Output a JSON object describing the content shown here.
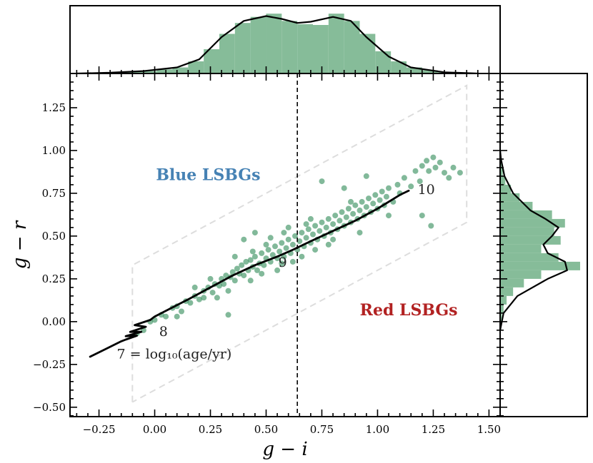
{
  "chart_data": {
    "type": "scatter",
    "xlabel": "g − i",
    "ylabel": "g − r",
    "xlim": [
      -0.38,
      1.55
    ],
    "ylim": [
      -0.555,
      1.45
    ],
    "x_ticks": [
      -0.25,
      0.0,
      0.25,
      0.5,
      0.75,
      1.0,
      1.25,
      1.5
    ],
    "x_tick_labels": [
      "−0.25",
      "0.00",
      "0.25",
      "0.50",
      "0.75",
      "1.00",
      "1.25",
      "1.50"
    ],
    "y_ticks": [
      -0.5,
      -0.25,
      0.0,
      0.25,
      0.5,
      0.75,
      1.0,
      1.25
    ],
    "y_tick_labels": [
      "−0.50",
      "−0.25",
      "0.00",
      "0.25",
      "0.50",
      "0.75",
      "1.00",
      "1.25"
    ],
    "divider_x": 0.64,
    "region_labels": [
      {
        "name": "blue",
        "text": "Blue LSBGs",
        "x": 0.24,
        "y": 0.86,
        "color": "#4682b4"
      },
      {
        "name": "red",
        "text": "Red LSBGs",
        "x": 1.14,
        "y": 0.07,
        "color": "#b22222"
      }
    ],
    "selection_box": [
      [
        -0.1,
        -0.47
      ],
      [
        -0.1,
        0.33
      ],
      [
        1.4,
        1.38
      ],
      [
        1.4,
        0.58
      ],
      [
        -0.1,
        -0.47
      ]
    ],
    "model_track": [
      [
        -0.29,
        -0.205
      ],
      [
        -0.22,
        -0.16
      ],
      [
        -0.15,
        -0.115
      ],
      [
        -0.13,
        -0.105
      ],
      [
        -0.08,
        -0.082
      ],
      [
        -0.13,
        -0.085
      ],
      [
        -0.06,
        -0.06
      ],
      [
        -0.11,
        -0.06
      ],
      [
        -0.04,
        -0.03
      ],
      [
        -0.09,
        -0.02
      ],
      [
        -0.02,
        0.01
      ],
      [
        0.0,
        0.03
      ],
      [
        0.06,
        0.07
      ],
      [
        0.15,
        0.13
      ],
      [
        0.25,
        0.2
      ],
      [
        0.35,
        0.27
      ],
      [
        0.45,
        0.33
      ],
      [
        0.55,
        0.38
      ],
      [
        0.62,
        0.42
      ],
      [
        0.7,
        0.47
      ],
      [
        0.8,
        0.53
      ],
      [
        0.9,
        0.59
      ],
      [
        1.0,
        0.66
      ],
      [
        1.1,
        0.74
      ],
      [
        1.14,
        0.765
      ]
    ],
    "track_labels": [
      {
        "text": "7 = log₁₀(age/yr)",
        "x": -0.17,
        "y": -0.19
      },
      {
        "text": "8",
        "x": 0.02,
        "y": -0.06
      },
      {
        "text": "9",
        "x": 0.555,
        "y": 0.345
      },
      {
        "text": "10",
        "x": 1.18,
        "y": 0.77
      }
    ],
    "points": [
      [
        -0.08,
        -0.07
      ],
      [
        -0.05,
        -0.05
      ],
      [
        -0.02,
        0.0
      ],
      [
        0.0,
        0.01
      ],
      [
        0.03,
        0.04
      ],
      [
        0.05,
        0.03
      ],
      [
        0.08,
        0.08
      ],
      [
        0.1,
        0.09
      ],
      [
        0.12,
        0.06
      ],
      [
        0.14,
        0.12
      ],
      [
        0.16,
        0.11
      ],
      [
        0.18,
        0.15
      ],
      [
        0.2,
        0.13
      ],
      [
        0.22,
        0.18
      ],
      [
        0.24,
        0.2
      ],
      [
        0.26,
        0.17
      ],
      [
        0.27,
        0.22
      ],
      [
        0.29,
        0.21
      ],
      [
        0.3,
        0.25
      ],
      [
        0.31,
        0.22
      ],
      [
        0.32,
        0.27
      ],
      [
        0.33,
        0.04
      ],
      [
        0.34,
        0.26
      ],
      [
        0.35,
        0.29
      ],
      [
        0.36,
        0.24
      ],
      [
        0.37,
        0.31
      ],
      [
        0.38,
        0.28
      ],
      [
        0.39,
        0.33
      ],
      [
        0.4,
        0.27
      ],
      [
        0.41,
        0.35
      ],
      [
        0.42,
        0.3
      ],
      [
        0.43,
        0.36
      ],
      [
        0.44,
        0.32
      ],
      [
        0.45,
        0.38
      ],
      [
        0.46,
        0.3
      ],
      [
        0.47,
        0.34
      ],
      [
        0.48,
        0.4
      ],
      [
        0.49,
        0.33
      ],
      [
        0.5,
        0.37
      ],
      [
        0.51,
        0.42
      ],
      [
        0.52,
        0.35
      ],
      [
        0.53,
        0.39
      ],
      [
        0.54,
        0.44
      ],
      [
        0.55,
        0.37
      ],
      [
        0.56,
        0.41
      ],
      [
        0.57,
        0.46
      ],
      [
        0.58,
        0.38
      ],
      [
        0.59,
        0.43
      ],
      [
        0.6,
        0.48
      ],
      [
        0.61,
        0.4
      ],
      [
        0.62,
        0.45
      ],
      [
        0.63,
        0.5
      ],
      [
        0.64,
        0.42
      ],
      [
        0.65,
        0.47
      ],
      [
        0.66,
        0.52
      ],
      [
        0.67,
        0.44
      ],
      [
        0.68,
        0.49
      ],
      [
        0.69,
        0.54
      ],
      [
        0.7,
        0.46
      ],
      [
        0.71,
        0.51
      ],
      [
        0.72,
        0.56
      ],
      [
        0.73,
        0.48
      ],
      [
        0.74,
        0.53
      ],
      [
        0.75,
        0.58
      ],
      [
        0.76,
        0.5
      ],
      [
        0.77,
        0.55
      ],
      [
        0.78,
        0.6
      ],
      [
        0.79,
        0.52
      ],
      [
        0.8,
        0.57
      ],
      [
        0.81,
        0.62
      ],
      [
        0.82,
        0.54
      ],
      [
        0.83,
        0.59
      ],
      [
        0.84,
        0.64
      ],
      [
        0.85,
        0.56
      ],
      [
        0.86,
        0.61
      ],
      [
        0.87,
        0.66
      ],
      [
        0.88,
        0.58
      ],
      [
        0.89,
        0.63
      ],
      [
        0.9,
        0.68
      ],
      [
        0.91,
        0.6
      ],
      [
        0.92,
        0.65
      ],
      [
        0.93,
        0.7
      ],
      [
        0.94,
        0.62
      ],
      [
        0.95,
        0.67
      ],
      [
        0.96,
        0.72
      ],
      [
        0.97,
        0.64
      ],
      [
        0.98,
        0.69
      ],
      [
        0.99,
        0.74
      ],
      [
        1.0,
        0.66
      ],
      [
        1.01,
        0.71
      ],
      [
        1.02,
        0.76
      ],
      [
        1.03,
        0.68
      ],
      [
        1.04,
        0.73
      ],
      [
        1.05,
        0.78
      ],
      [
        1.07,
        0.7
      ],
      [
        1.09,
        0.8
      ],
      [
        1.1,
        0.75
      ],
      [
        1.12,
        0.84
      ],
      [
        1.15,
        0.79
      ],
      [
        1.17,
        0.88
      ],
      [
        1.19,
        0.82
      ],
      [
        1.2,
        0.91
      ],
      [
        1.22,
        0.94
      ],
      [
        1.23,
        0.88
      ],
      [
        1.25,
        0.96
      ],
      [
        1.26,
        0.9
      ],
      [
        1.28,
        0.93
      ],
      [
        1.3,
        0.87
      ],
      [
        1.32,
        0.84
      ],
      [
        1.34,
        0.9
      ],
      [
        1.37,
        0.87
      ],
      [
        1.24,
        0.56
      ],
      [
        1.2,
        0.62
      ],
      [
        0.45,
        0.52
      ],
      [
        0.4,
        0.48
      ],
      [
        0.75,
        0.82
      ],
      [
        0.85,
        0.78
      ],
      [
        0.95,
        0.85
      ],
      [
        0.33,
        0.18
      ],
      [
        0.28,
        0.14
      ],
      [
        0.48,
        0.28
      ],
      [
        0.55,
        0.3
      ],
      [
        0.6,
        0.55
      ],
      [
        0.52,
        0.49
      ],
      [
        0.66,
        0.38
      ],
      [
        0.72,
        0.42
      ],
      [
        0.78,
        0.45
      ],
      [
        0.58,
        0.52
      ],
      [
        0.62,
        0.35
      ],
      [
        0.7,
        0.6
      ],
      [
        0.88,
        0.7
      ],
      [
        0.92,
        0.52
      ],
      [
        1.05,
        0.62
      ],
      [
        0.44,
        0.41
      ],
      [
        0.36,
        0.38
      ],
      [
        0.5,
        0.45
      ],
      [
        0.18,
        0.2
      ],
      [
        0.22,
        0.14
      ],
      [
        0.1,
        0.03
      ],
      [
        0.25,
        0.25
      ],
      [
        0.43,
        0.24
      ],
      [
        0.57,
        0.34
      ],
      [
        0.68,
        0.57
      ],
      [
        0.8,
        0.48
      ]
    ],
    "top_histogram": {
      "bin_edges": [
        -0.27,
        -0.2,
        -0.13,
        -0.06,
        0.01,
        0.08,
        0.15,
        0.22,
        0.29,
        0.36,
        0.43,
        0.5,
        0.57,
        0.64,
        0.71,
        0.78,
        0.85,
        0.92,
        0.99,
        1.06,
        1.13,
        1.2,
        1.27,
        1.34
      ],
      "densities": [
        0.02,
        0.03,
        0.05,
        0.06,
        0.1,
        0.15,
        0.3,
        0.6,
        0.98,
        1.25,
        1.4,
        1.48,
        1.3,
        1.22,
        1.2,
        1.48,
        1.3,
        0.98,
        0.55,
        0.3,
        0.15,
        0.08,
        0.03
      ],
      "kde_x": [
        -0.35,
        -0.2,
        -0.05,
        0.1,
        0.2,
        0.3,
        0.4,
        0.5,
        0.57,
        0.64,
        0.7,
        0.8,
        0.88,
        0.95,
        1.05,
        1.15,
        1.3,
        1.45
      ],
      "kde_y": [
        0.0,
        0.02,
        0.06,
        0.15,
        0.35,
        0.9,
        1.3,
        1.42,
        1.35,
        1.25,
        1.28,
        1.4,
        1.3,
        0.9,
        0.42,
        0.15,
        0.03,
        0.0
      ]
    },
    "right_histogram": {
      "bin_edges": [
        -0.05,
        0.0,
        0.05,
        0.1,
        0.15,
        0.2,
        0.25,
        0.3,
        0.35,
        0.4,
        0.45,
        0.5,
        0.55,
        0.6,
        0.65,
        0.7,
        0.75,
        0.8,
        0.85,
        0.9,
        0.95,
        1.0
      ],
      "densities": [
        0.02,
        0.04,
        0.08,
        0.15,
        0.3,
        0.55,
        0.95,
        1.85,
        1.35,
        0.95,
        1.4,
        1.25,
        1.5,
        1.2,
        0.75,
        0.45,
        0.25,
        0.12,
        0.06,
        0.03,
        0.02
      ],
      "kde_y": [
        -0.05,
        0.05,
        0.15,
        0.25,
        0.3,
        0.35,
        0.4,
        0.45,
        0.5,
        0.55,
        0.6,
        0.65,
        0.75,
        0.85,
        0.95,
        1.0
      ],
      "kde_x": [
        0.0,
        0.08,
        0.4,
        1.1,
        1.55,
        1.5,
        1.1,
        1.0,
        1.2,
        1.35,
        1.05,
        0.7,
        0.3,
        0.1,
        0.02,
        0.0
      ]
    }
  }
}
